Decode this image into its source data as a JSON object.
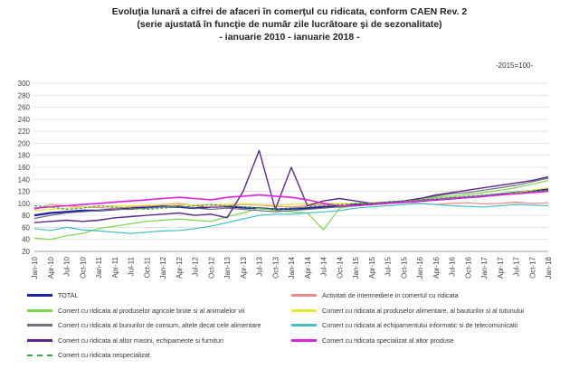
{
  "title_line1": "Evoluţia lunară a cifrei de afaceri în comerţul cu ridicata,  conform CAEN Rev. 2",
  "title_line2": "(serie ajustată în funcţie de număr zile lucrătoare şi de sezonalitate)",
  "title_line3": "- ianuarie 2010 - ianuarie 2018  -",
  "base_note": "-2015=100-",
  "chart_data": {
    "type": "line",
    "ylim": [
      20,
      300
    ],
    "yticks": [
      20,
      40,
      60,
      80,
      100,
      120,
      140,
      160,
      180,
      200,
      220,
      240,
      260,
      280,
      300
    ],
    "x_labels": [
      "Jan-10",
      "Apr-10",
      "Jul-10",
      "Oct-10",
      "Jan-11",
      "Apr-11",
      "Jul-11",
      "Oct-11",
      "Jan-12",
      "Apr-12",
      "Jul-12",
      "Oct-12",
      "Jan-13",
      "Apr-13",
      "Jul-13",
      "Oct-13",
      "Jan-14",
      "Apr-14",
      "Jul-14",
      "Oct-14",
      "Jan-15",
      "Apr-15",
      "Jul-15",
      "Oct-15",
      "Jan-16",
      "Apr-16",
      "Jul-16",
      "Oct-16",
      "Jan-17",
      "Apr-17",
      "Jul-17",
      "Oct-17",
      "Jan-18"
    ],
    "grid": "horizontal",
    "legend_position": "bottom",
    "series": [
      {
        "name": "TOTAL",
        "color": "#1f1fa8",
        "width": 2.2,
        "values": [
          80,
          84,
          86,
          88,
          88,
          90,
          92,
          93,
          95,
          94,
          92,
          94,
          95,
          93,
          92,
          90,
          91,
          92,
          94,
          95,
          98,
          100,
          101,
          102,
          104,
          106,
          108,
          110,
          112,
          115,
          118,
          121,
          123
        ]
      },
      {
        "name": "Activitati de intermediere in comertul cu ridicata",
        "color": "#f08a8a",
        "width": 1.2,
        "values": [
          90,
          98,
          96,
          94,
          93,
          92,
          94,
          96,
          98,
          100,
          96,
          94,
          96,
          98,
          97,
          95,
          94,
          96,
          98,
          97,
          96,
          98,
          100,
          102,
          100,
          98,
          100,
          101,
          99,
          100,
          102,
          100,
          101
        ]
      },
      {
        "name": "Comert cu ridicata al produselor agricole brute si al animalelor vii",
        "color": "#7ad84a",
        "width": 1.2,
        "values": [
          42,
          40,
          46,
          50,
          58,
          62,
          66,
          70,
          72,
          74,
          72,
          70,
          78,
          84,
          92,
          88,
          86,
          84,
          56,
          92,
          96,
          98,
          102,
          104,
          106,
          110,
          112,
          115,
          118,
          122,
          126,
          132,
          138
        ]
      },
      {
        "name": "Comert cu ridicata al produselor alimentare, al bauturilor si al tutunului",
        "color": "#e8e830",
        "width": 1.2,
        "values": [
          88,
          90,
          92,
          94,
          95,
          96,
          96,
          97,
          98,
          98,
          97,
          98,
          98,
          99,
          98,
          97,
          98,
          99,
          100,
          100,
          100,
          101,
          102,
          103,
          104,
          106,
          108,
          110,
          112,
          114,
          118,
          122,
          126
        ]
      },
      {
        "name": "Comert cu ridicata al bunurilor de consum, altele decat cele alimentare",
        "color": "#707080",
        "width": 1.2,
        "values": [
          75,
          80,
          84,
          86,
          88,
          90,
          90,
          92,
          94,
          96,
          92,
          90,
          92,
          90,
          88,
          86,
          88,
          90,
          92,
          94,
          96,
          98,
          102,
          104,
          108,
          112,
          116,
          118,
          122,
          126,
          130,
          136,
          142
        ]
      },
      {
        "name": "Comert cu ridicata al echipamentului informatic si de telecomunicatii",
        "color": "#40c0c8",
        "width": 1.2,
        "values": [
          58,
          55,
          60,
          56,
          54,
          52,
          50,
          52,
          54,
          55,
          58,
          62,
          68,
          74,
          80,
          82,
          82,
          84,
          86,
          88,
          92,
          94,
          96,
          98,
          100,
          98,
          96,
          95,
          94,
          96,
          98,
          97,
          96
        ]
      },
      {
        "name": "Comert cu ridicata al altor masini, echipamente si furnituri",
        "color": "#5a2a8a",
        "width": 1.4,
        "values": [
          68,
          70,
          72,
          70,
          72,
          76,
          78,
          80,
          82,
          84,
          80,
          82,
          76,
          120,
          188,
          90,
          160,
          96,
          104,
          108,
          104,
          100,
          102,
          104,
          108,
          114,
          118,
          122,
          126,
          130,
          134,
          138,
          144
        ]
      },
      {
        "name": "Comert cu ridicata specializat al altor produse",
        "color": "#e020e0",
        "width": 1.6,
        "values": [
          92,
          94,
          96,
          98,
          100,
          102,
          104,
          106,
          108,
          110,
          108,
          106,
          110,
          112,
          114,
          112,
          110,
          106,
          100,
          96,
          96,
          98,
          100,
          102,
          104,
          106,
          108,
          110,
          112,
          114,
          116,
          118,
          120
        ]
      },
      {
        "name": "Comert cu ridicata nespecializat",
        "color": "#3ea83e",
        "width": 1.2,
        "dash": true,
        "values": [
          96,
          94,
          90,
          92,
          96,
          94,
          92,
          90,
          92,
          94,
          96,
          98,
          96,
          94,
          92,
          90,
          92,
          94,
          96,
          98,
          100,
          100,
          102,
          104,
          106,
          108,
          110,
          112,
          114,
          116,
          118,
          120,
          122
        ]
      }
    ]
  }
}
